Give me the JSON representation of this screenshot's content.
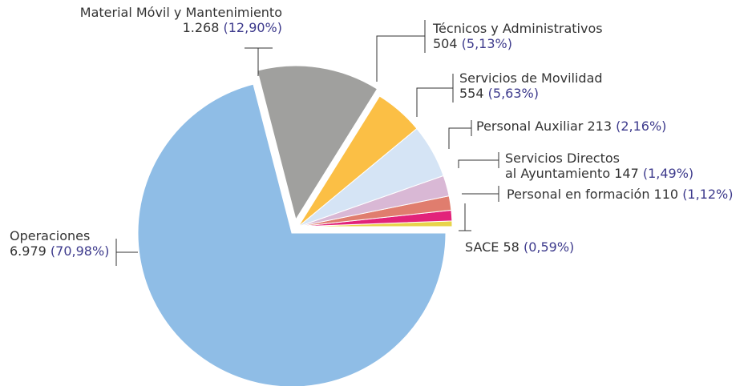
{
  "chart_data": {
    "type": "pie",
    "categories": [
      "Material Móvil y Mantenimiento",
      "Técnicos y Administrativos",
      "Servicios de Movilidad",
      "Personal Auxiliar",
      "Servicios Directos\nal Ayuntamiento",
      "Personal en formación",
      "SACE",
      "Operaciones"
    ],
    "values": [
      1268,
      504,
      554,
      213,
      147,
      110,
      58,
      6979
    ],
    "value_labels": [
      "1.268",
      "504",
      "554",
      "213",
      "147",
      "110",
      "58",
      "6.979"
    ],
    "percentages": [
      12.9,
      5.13,
      5.63,
      2.16,
      1.49,
      1.12,
      0.59,
      70.98
    ],
    "percentage_labels": [
      "(12,90%)",
      "(5,13%)",
      "(5,63%)",
      "(2,16%)",
      "(1,49%)",
      "(1,12%)",
      "(0,59%)",
      "(70,98%)"
    ],
    "colors": [
      "#a0a09e",
      "#fbbf45",
      "#d5e4f5",
      "#d9b8d5",
      "#e07d6e",
      "#e2237a",
      "#e8d44a",
      "#8fbde6"
    ]
  }
}
